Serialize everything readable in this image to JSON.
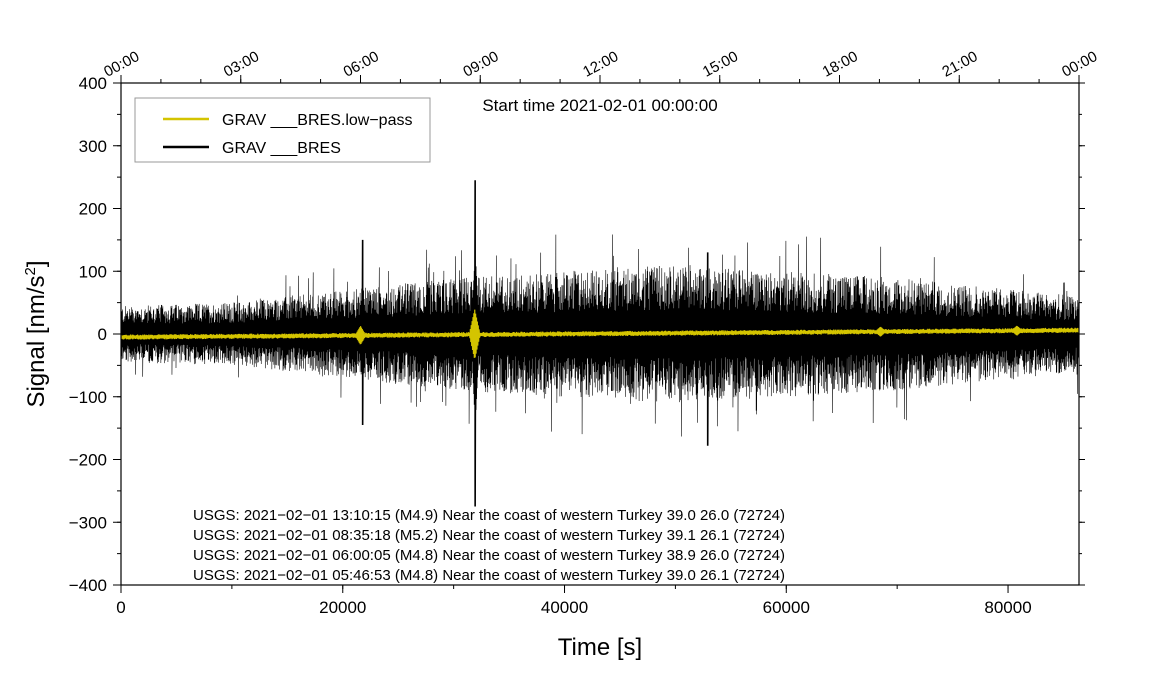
{
  "chart_data": {
    "type": "line",
    "title": "Start time 2021-02-01 00:00:00",
    "xlabel": "Time [s]",
    "ylabel_main": "Signal [nm/s",
    "ylabel_sup": "2",
    "ylabel_end": "]",
    "xlim": [
      0,
      86400
    ],
    "ylim": [
      -400,
      400
    ],
    "x_ticks": [
      0,
      20000,
      40000,
      60000,
      80000
    ],
    "x_tick_labels": [
      "0",
      "20000",
      "40000",
      "60000",
      "80000"
    ],
    "y_ticks": [
      -400,
      -300,
      -200,
      -100,
      0,
      100,
      200,
      300,
      400
    ],
    "y_tick_labels": [
      "−400",
      "−300",
      "−200",
      "−100",
      "0",
      "100",
      "200",
      "300",
      "400"
    ],
    "top_ticks_seconds": [
      0,
      10800,
      21600,
      32400,
      43200,
      54000,
      64800,
      75600,
      86400
    ],
    "top_tick_labels": [
      "00:00",
      "03:00",
      "06:00",
      "09:00",
      "12:00",
      "15:00",
      "18:00",
      "21:00",
      "00:00"
    ],
    "legend_position": "top-left",
    "series": [
      {
        "name": "GRAV ___BRES.low−pass",
        "color": "#d4c400",
        "base_amplitude": 4,
        "offset_start": -5,
        "offset_end": 6,
        "spikes": [
          {
            "t": 21600,
            "amp": 15
          },
          {
            "t": 31900,
            "amp": 40
          },
          {
            "t": 68500,
            "amp": 8
          },
          {
            "t": 80800,
            "amp": 8
          }
        ]
      },
      {
        "name": "GRAV ___BRES",
        "color": "#000000",
        "envelope": [
          {
            "t": 0,
            "amp": 45
          },
          {
            "t": 10000,
            "amp": 50
          },
          {
            "t": 20000,
            "amp": 70
          },
          {
            "t": 30000,
            "amp": 90
          },
          {
            "t": 50000,
            "amp": 110
          },
          {
            "t": 70000,
            "amp": 90
          },
          {
            "t": 86400,
            "amp": 60
          }
        ],
        "spikes": [
          {
            "t": 21800,
            "max": 150,
            "min": -145
          },
          {
            "t": 31950,
            "max": 245,
            "min": -275
          },
          {
            "t": 52900,
            "max": 130,
            "min": -178
          }
        ]
      }
    ],
    "annotations": [
      "USGS: 2021−02−01 13:10:15 (M4.9) Near the coast of western Turkey 39.0 26.0 (72724)",
      "USGS: 2021−02−01 08:35:18 (M5.2) Near the coast of western Turkey 39.1 26.1 (72724)",
      "USGS: 2021−02−01 06:00:05 (M4.8) Near the coast of western Turkey 38.9 26.0 (72724)",
      "USGS: 2021−02−01 05:46:53 (M4.8) Near the coast of western Turkey 39.0 26.1 (72724)"
    ]
  }
}
